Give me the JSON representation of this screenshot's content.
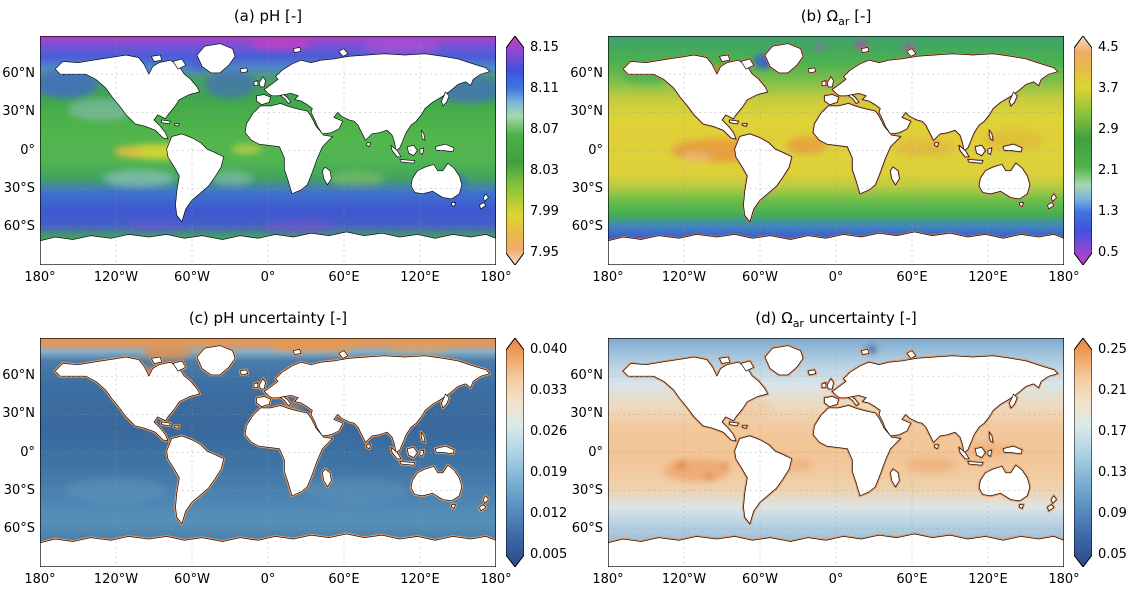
{
  "figure": {
    "background": "#ffffff",
    "yticks": [
      "60°N",
      "30°N",
      "0°",
      "30°S",
      "60°S"
    ],
    "xticks": [
      "180°",
      "120°W",
      "60°W",
      "0°",
      "60°E",
      "120°E",
      "180°"
    ],
    "panels": [
      {
        "id": "a",
        "title_pre": "(a) pH [-]",
        "title_sub": "",
        "title_post": "",
        "colorbar_ticks": [
          "8.15",
          "8.11",
          "8.07",
          "8.03",
          "7.99",
          "7.95"
        ],
        "colorbar_stops": [
          {
            "at": "0%",
            "color": "#c23fb8"
          },
          {
            "at": "7%",
            "color": "#8a49d4"
          },
          {
            "at": "15%",
            "color": "#4152dc"
          },
          {
            "at": "23%",
            "color": "#3f76e0"
          },
          {
            "at": "29%",
            "color": "#7fb4dc"
          },
          {
            "at": "35%",
            "color": "#a6d8b0"
          },
          {
            "at": "43%",
            "color": "#4fb148"
          },
          {
            "at": "55%",
            "color": "#3fa03f"
          },
          {
            "at": "66%",
            "color": "#8ac43c"
          },
          {
            "at": "78%",
            "color": "#ddd430"
          },
          {
            "at": "87%",
            "color": "#e9b84e"
          },
          {
            "at": "93%",
            "color": "#efac6a"
          },
          {
            "at": "100%",
            "color": "#f7ddc5"
          }
        ]
      },
      {
        "id": "b",
        "title_pre": "(b) Ω",
        "title_sub": "ar",
        "title_post": " [-]",
        "colorbar_ticks": [
          "4.5",
          "3.7",
          "2.9",
          "2.1",
          "1.3",
          "0.5"
        ],
        "colorbar_stops": [
          {
            "at": "0%",
            "color": "#f7ddc5"
          },
          {
            "at": "7%",
            "color": "#efac6a"
          },
          {
            "at": "13%",
            "color": "#e9b84e"
          },
          {
            "at": "22%",
            "color": "#ddd430"
          },
          {
            "at": "34%",
            "color": "#8ac43c"
          },
          {
            "at": "45%",
            "color": "#3fa03f"
          },
          {
            "at": "57%",
            "color": "#4fb148"
          },
          {
            "at": "65%",
            "color": "#a6d8b0"
          },
          {
            "at": "71%",
            "color": "#7fb4dc"
          },
          {
            "at": "77%",
            "color": "#3f76e0"
          },
          {
            "at": "85%",
            "color": "#4152dc"
          },
          {
            "at": "93%",
            "color": "#8a49d4"
          },
          {
            "at": "100%",
            "color": "#c23fb8"
          }
        ]
      },
      {
        "id": "c",
        "title_pre": "(c) pH uncertainty [-]",
        "title_sub": "",
        "title_post": "",
        "colorbar_ticks": [
          "0.040",
          "0.033",
          "0.026",
          "0.019",
          "0.012",
          "0.005"
        ],
        "colorbar_stops": [
          {
            "at": "0%",
            "color": "#e8833f"
          },
          {
            "at": "8%",
            "color": "#f0a362"
          },
          {
            "at": "18%",
            "color": "#f3cda2"
          },
          {
            "at": "28%",
            "color": "#f2e3c8"
          },
          {
            "at": "38%",
            "color": "#dce9ea"
          },
          {
            "at": "50%",
            "color": "#aed4e4"
          },
          {
            "at": "62%",
            "color": "#7fb2d4"
          },
          {
            "at": "74%",
            "color": "#5a8fc0"
          },
          {
            "at": "86%",
            "color": "#3f6aa8"
          },
          {
            "at": "100%",
            "color": "#2a4a8e"
          }
        ]
      },
      {
        "id": "d",
        "title_pre": "(d) Ω",
        "title_sub": "ar",
        "title_post": " uncertainty [-]",
        "colorbar_ticks": [
          "0.25",
          "0.21",
          "0.17",
          "0.13",
          "0.09",
          "0.05"
        ],
        "colorbar_stops": [
          {
            "at": "0%",
            "color": "#e8833f"
          },
          {
            "at": "8%",
            "color": "#f0a362"
          },
          {
            "at": "18%",
            "color": "#f3cda2"
          },
          {
            "at": "28%",
            "color": "#f2e3c8"
          },
          {
            "at": "38%",
            "color": "#dce9ea"
          },
          {
            "at": "50%",
            "color": "#aed4e4"
          },
          {
            "at": "62%",
            "color": "#7fb2d4"
          },
          {
            "at": "74%",
            "color": "#5a8fc0"
          },
          {
            "at": "86%",
            "color": "#3f6aa8"
          },
          {
            "at": "100%",
            "color": "#2a4a8e"
          }
        ]
      }
    ]
  },
  "chart_data": [
    {
      "type": "heatmap",
      "panel": "a",
      "title": "(a) pH [-]",
      "projection": "equirectangular world map, ocean surface field, land masked white",
      "x_ticks": [
        "180°",
        "120°W",
        "60°W",
        "0°",
        "60°E",
        "120°E",
        "180°"
      ],
      "y_ticks": [
        "60°N",
        "30°N",
        "0°",
        "30°S",
        "60°S"
      ],
      "grid": true,
      "colorbar": {
        "orientation": "vertical",
        "position": "right",
        "extend": "both",
        "ticks": [
          8.15,
          8.11,
          8.07,
          8.03,
          7.99,
          7.95
        ],
        "range": [
          7.95,
          8.15
        ]
      },
      "zonal_mean_estimate": {
        "lat": [
          80,
          60,
          40,
          20,
          0,
          -20,
          -40,
          -60,
          -70
        ],
        "pH": [
          8.12,
          8.08,
          8.07,
          8.05,
          8.03,
          8.06,
          8.1,
          8.08,
          8.07
        ]
      },
      "notable_features": [
        "Yellow low-pH tongue ~7.99–8.03 in eastern equatorial Pacific",
        "Magenta/purple high pH >8.12 patches across the Arctic",
        "Blue bands ~8.10–8.12 at 35–55°S and in subpolar North Pacific/Atlantic",
        "Green mid values ~8.04–8.07 over tropics and northern mid-latitudes"
      ]
    },
    {
      "type": "heatmap",
      "panel": "b",
      "title": "(b) Ω_ar [-]",
      "projection": "equirectangular world map, ocean surface field, land masked white",
      "x_ticks": [
        "180°",
        "120°W",
        "60°W",
        "0°",
        "60°E",
        "120°E",
        "180°"
      ],
      "y_ticks": [
        "60°N",
        "30°N",
        "0°",
        "30°S",
        "60°S"
      ],
      "grid": true,
      "colorbar": {
        "orientation": "vertical",
        "position": "right",
        "extend": "both",
        "ticks": [
          4.5,
          3.7,
          2.9,
          2.1,
          1.3,
          0.5
        ],
        "range": [
          0.5,
          4.5
        ]
      },
      "zonal_mean_estimate": {
        "lat": [
          80,
          60,
          40,
          30,
          15,
          0,
          -15,
          -30,
          -45,
          -60,
          -70
        ],
        "omega_ar": [
          1.8,
          2.1,
          2.6,
          3.0,
          3.4,
          3.3,
          3.4,
          2.9,
          2.2,
          1.4,
          1.2
        ]
      },
      "notable_features": [
        "Orange maxima ~3.7–4.1 in tropical eastern Pacific and tropical Atlantic",
        "Broad yellow ~3.1–3.5 across subtropics of both hemispheres",
        "Blue <1.5 poleward of ~55°S and in Baffin Bay",
        "Magenta spots <1.0 in parts of the Arctic"
      ]
    },
    {
      "type": "heatmap",
      "panel": "c",
      "title": "(c) pH uncertainty [-]",
      "projection": "equirectangular world map, ocean surface field, land masked white",
      "x_ticks": [
        "180°",
        "120°W",
        "60°W",
        "0°",
        "60°E",
        "120°E",
        "180°"
      ],
      "y_ticks": [
        "60°N",
        "30°N",
        "0°",
        "30°S",
        "60°S"
      ],
      "grid": true,
      "colorbar": {
        "orientation": "vertical",
        "position": "right",
        "extend": "both",
        "ticks": [
          0.04,
          0.033,
          0.026,
          0.019,
          0.012,
          0.005
        ],
        "range": [
          0.005,
          0.04
        ]
      },
      "zonal_mean_estimate": {
        "lat": [
          80,
          60,
          30,
          0,
          -30,
          -60
        ],
        "pH_uncertainty": [
          0.032,
          0.018,
          0.016,
          0.016,
          0.018,
          0.019
        ]
      },
      "notable_features": [
        "Open ocean mostly uniform blue ~0.014–0.020",
        "Orange band 0.033–0.040 along Arctic margin and Hudson Bay",
        "Thin orange coastal fringes ~0.030–0.040 worldwide",
        "Slightly lighter blues ~0.020 in parts of the Southern Ocean"
      ]
    },
    {
      "type": "heatmap",
      "panel": "d",
      "title": "(d) Ω_ar uncertainty [-]",
      "projection": "equirectangular world map, ocean surface field, land masked white",
      "x_ticks": [
        "180°",
        "120°W",
        "60°W",
        "0°",
        "60°E",
        "120°E",
        "180°"
      ],
      "y_ticks": [
        "60°N",
        "30°N",
        "0°",
        "30°S",
        "60°S"
      ],
      "grid": true,
      "colorbar": {
        "orientation": "vertical",
        "position": "right",
        "extend": "both",
        "ticks": [
          0.25,
          0.21,
          0.17,
          0.13,
          0.09,
          0.05
        ],
        "range": [
          0.05,
          0.25
        ]
      },
      "zonal_mean_estimate": {
        "lat": [
          80,
          60,
          40,
          20,
          0,
          -20,
          -40,
          -60
        ],
        "omega_uncertainty": [
          0.1,
          0.11,
          0.14,
          0.18,
          0.18,
          0.19,
          0.14,
          0.1
        ]
      },
      "notable_features": [
        "Light blue ~0.07–0.13 at high latitudes of both hemispheres",
        "Peach/orange ~0.15–0.21 across tropics and subtropics",
        "Darker orange patches 0.21–0.25 in south-east Pacific gyre and along coasts",
        "Small dark-blue minimum spot near Barents Sea"
      ]
    }
  ]
}
